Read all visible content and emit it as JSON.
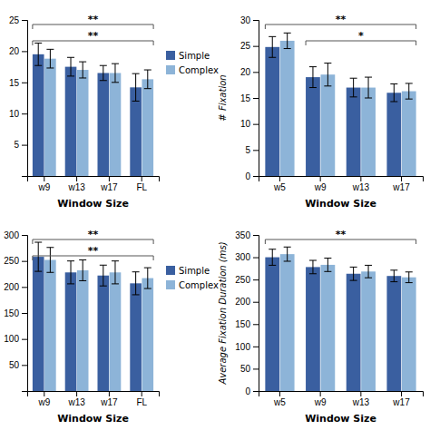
{
  "chart_data": [
    {
      "type": "bar",
      "xlabel": "Window Size",
      "categories": [
        "w9",
        "w13",
        "w17",
        "FL"
      ],
      "series": [
        {
          "name": "Simple",
          "color": "#3A5FA0",
          "values": [
            19.5,
            17.5,
            16.5,
            14.2
          ],
          "errors": [
            1.8,
            1.5,
            1.2,
            2.2
          ]
        },
        {
          "name": "Complex",
          "color": "#8DB4D8",
          "values": [
            18.8,
            17.0,
            16.5,
            15.5
          ],
          "errors": [
            1.5,
            1.3,
            1.5,
            1.5
          ]
        }
      ],
      "ylim": [
        0,
        25
      ],
      "yticks": [
        5,
        10,
        15,
        20,
        25
      ],
      "annotations": [
        {
          "text": "**",
          "from": "w9",
          "to": "FL"
        },
        {
          "text": "**",
          "from": "w9",
          "to": "FL"
        }
      ],
      "legend": "right",
      "grid": false
    },
    {
      "type": "bar",
      "xlabel": "Window Size",
      "ylabel": "# Fixation",
      "categories": [
        "w5",
        "w9",
        "w13",
        "w17"
      ],
      "series": [
        {
          "name": "Simple",
          "color": "#3A5FA0",
          "values": [
            24.8,
            19.0,
            17.0,
            16.0
          ],
          "errors": [
            2.0,
            2.0,
            1.8,
            1.7
          ]
        },
        {
          "name": "Complex",
          "color": "#8DB4D8",
          "values": [
            26.0,
            19.5,
            17.0,
            16.3
          ],
          "errors": [
            1.5,
            2.2,
            2.0,
            1.5
          ]
        }
      ],
      "ylim": [
        0,
        30
      ],
      "yticks": [
        0,
        5,
        10,
        15,
        20,
        25,
        30
      ],
      "annotations": [
        {
          "text": "**",
          "from": "w5",
          "to": "w17"
        },
        {
          "text": "*",
          "from": "w9",
          "to": "w17"
        }
      ],
      "grid": false
    },
    {
      "type": "bar",
      "xlabel": "Window Size",
      "categories": [
        "w9",
        "w13",
        "w17",
        "FL"
      ],
      "series": [
        {
          "name": "Simple",
          "color": "#3A5FA0",
          "values": [
            258,
            228,
            222,
            207
          ],
          "errors": [
            28,
            22,
            20,
            22
          ]
        },
        {
          "name": "Complex",
          "color": "#8DB4D8",
          "values": [
            252,
            232,
            228,
            217
          ],
          "errors": [
            24,
            20,
            22,
            20
          ]
        }
      ],
      "ylim": [
        0,
        300
      ],
      "yticks": [
        50,
        100,
        150,
        200,
        250,
        300
      ],
      "annotations": [
        {
          "text": "**",
          "from": "w9",
          "to": "FL"
        },
        {
          "text": "**",
          "from": "w9",
          "to": "FL"
        }
      ],
      "legend": "right",
      "grid": false
    },
    {
      "type": "bar",
      "xlabel": "Window Size",
      "ylabel": "Average Fixation Duration (ms)",
      "categories": [
        "w5",
        "w9",
        "w13",
        "w17"
      ],
      "series": [
        {
          "name": "Simple",
          "color": "#3A5FA0",
          "values": [
            300,
            278,
            263,
            258
          ],
          "errors": [
            18,
            15,
            15,
            13
          ]
        },
        {
          "name": "Complex",
          "color": "#8DB4D8",
          "values": [
            307,
            283,
            268,
            255
          ],
          "errors": [
            16,
            15,
            14,
            12
          ]
        }
      ],
      "ylim": [
        0,
        350
      ],
      "yticks": [
        0,
        50,
        100,
        150,
        200,
        250,
        300,
        350
      ],
      "annotations": [
        {
          "text": "**",
          "from": "w5",
          "to": "w17"
        }
      ],
      "grid": false
    }
  ]
}
